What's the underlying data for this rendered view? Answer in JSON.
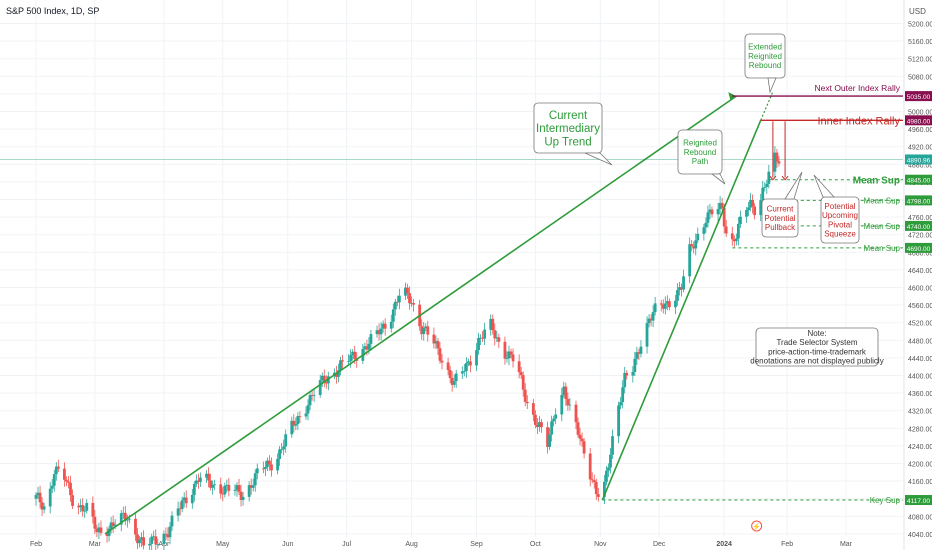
{
  "header": {
    "symbol_title": "S&P 500 Index, 1D, SP"
  },
  "colors": {
    "up": "#26a69a",
    "down": "#ef5350",
    "green": "#2e9c3a",
    "red": "#c62828",
    "maroon": "#880e4f",
    "grid": "#f0f3f6",
    "axis_text": "#555555",
    "price_line": "#a8d8cc"
  },
  "chart_data": {
    "type": "candlestick",
    "title": "S&P 500 Index, 1D, SP",
    "currency": "USD",
    "y_range": [
      4040,
      5240
    ],
    "y_ticks": [
      5200,
      5160,
      5120,
      5080,
      5040,
      5000,
      4960,
      4920,
      4880,
      4840,
      4800,
      4760,
      4720,
      4680,
      4640,
      4600,
      4560,
      4520,
      4480,
      4440,
      4400,
      4360,
      4320,
      4280,
      4240,
      4200,
      4160,
      4120,
      4080,
      4040
    ],
    "y_tick_labels": [
      "5200.00",
      "5160.00",
      "5120.00",
      "5080.00",
      "5040.00",
      "5000.00",
      "4960.00",
      "4920.00",
      "4880.00",
      "4840.00",
      "4800.00",
      "4760.00",
      "4720.00",
      "4680.00",
      "4640.00",
      "4600.00",
      "4560.00",
      "4520.00",
      "4480.00",
      "4440.00",
      "4400.00",
      "4360.00",
      "4320.00",
      "4280.00",
      "4240.00",
      "4200.00",
      "4160.00",
      "4120.00",
      "4080.00",
      "4040.00"
    ],
    "x_labels": [
      "Feb",
      "Mar",
      "Apr",
      "May",
      "Jun",
      "Jul",
      "Aug",
      "Sep",
      "Oct",
      "Nov",
      "Dec",
      "2024",
      "Feb",
      "Mar"
    ],
    "x_label_days": [
      0,
      29,
      63,
      92,
      124,
      153,
      185,
      217,
      246,
      278,
      307,
      339,
      370,
      399
    ],
    "close_series_anchors": [
      [
        0,
        4120
      ],
      [
        5,
        4100
      ],
      [
        9,
        4185
      ],
      [
        14,
        4165
      ],
      [
        19,
        4110
      ],
      [
        25,
        4095
      ],
      [
        30,
        4045
      ],
      [
        38,
        4060
      ],
      [
        45,
        4080
      ],
      [
        53,
        4010
      ],
      [
        60,
        4030
      ],
      [
        65,
        4045
      ],
      [
        72,
        4110
      ],
      [
        80,
        4165
      ],
      [
        88,
        4150
      ],
      [
        95,
        4140
      ],
      [
        102,
        4130
      ],
      [
        110,
        4180
      ],
      [
        118,
        4210
      ],
      [
        126,
        4280
      ],
      [
        134,
        4340
      ],
      [
        142,
        4390
      ],
      [
        150,
        4420
      ],
      [
        158,
        4450
      ],
      [
        166,
        4480
      ],
      [
        174,
        4530
      ],
      [
        180,
        4590
      ],
      [
        185,
        4570
      ],
      [
        190,
        4510
      ],
      [
        195,
        4480
      ],
      [
        200,
        4440
      ],
      [
        206,
        4380
      ],
      [
        212,
        4420
      ],
      [
        218,
        4480
      ],
      [
        224,
        4510
      ],
      [
        230,
        4460
      ],
      [
        236,
        4430
      ],
      [
        242,
        4340
      ],
      [
        248,
        4280
      ],
      [
        252,
        4240
      ],
      [
        256,
        4330
      ],
      [
        260,
        4370
      ],
      [
        264,
        4300
      ],
      [
        268,
        4260
      ],
      [
        272,
        4200
      ],
      [
        276,
        4130
      ],
      [
        279,
        4115
      ],
      [
        282,
        4200
      ],
      [
        286,
        4320
      ],
      [
        290,
        4390
      ],
      [
        294,
        4410
      ],
      [
        298,
        4480
      ],
      [
        302,
        4530
      ],
      [
        306,
        4550
      ],
      [
        310,
        4560
      ],
      [
        314,
        4580
      ],
      [
        318,
        4600
      ],
      [
        322,
        4680
      ],
      [
        326,
        4720
      ],
      [
        330,
        4760
      ],
      [
        334,
        4770
      ],
      [
        338,
        4780
      ],
      [
        340,
        4730
      ],
      [
        342,
        4700
      ],
      [
        345,
        4720
      ],
      [
        349,
        4770
      ],
      [
        352,
        4790
      ],
      [
        355,
        4780
      ],
      [
        358,
        4820
      ],
      [
        361,
        4850
      ],
      [
        364,
        4890
      ],
      [
        366,
        4890
      ]
    ],
    "price_labels": [
      {
        "label": "5035.00",
        "value": 5035,
        "kind": "maroon"
      },
      {
        "label": "4980.00",
        "value": 4980,
        "kind": "maroon"
      },
      {
        "label": "4890.96",
        "value": 4890.96,
        "kind": "last"
      },
      {
        "label": "4845.00",
        "value": 4845,
        "kind": "green"
      },
      {
        "label": "4798.00",
        "value": 4798,
        "kind": "green"
      },
      {
        "label": "4740.00",
        "value": 4740,
        "kind": "green"
      },
      {
        "label": "4690.00",
        "value": 4690,
        "kind": "green"
      },
      {
        "label": "4117.00",
        "value": 4117,
        "kind": "green"
      }
    ],
    "trendlines": [
      {
        "name": "intermediary-uptrend",
        "from": [
          34,
          4040
        ],
        "to": [
          345,
          5035
        ],
        "color": "green"
      },
      {
        "name": "reignited-rebound-path",
        "from": [
          279,
          4117
        ],
        "to": [
          357,
          4980
        ],
        "color": "green"
      },
      {
        "name": "extended-reignited-rebound",
        "from": [
          357,
          4980
        ],
        "to": [
          363,
          5045
        ],
        "color": "green",
        "dashed": true
      }
    ],
    "levels": [
      {
        "name": "next-outer-index-rally",
        "value": 5035,
        "from_day": 343,
        "label": "Next Outer Index Rally",
        "color": "maroon"
      },
      {
        "name": "inner-index-rally",
        "value": 4980,
        "from_day": 357,
        "label": "Inner Index Rally",
        "color": "red"
      },
      {
        "name": "mean-sup-1",
        "value": 4845,
        "from_day": 361,
        "label": "Mean Sup",
        "color": "green"
      },
      {
        "name": "mean-sup-2",
        "value": 4798,
        "from_day": 359,
        "label": "Mean Sup",
        "color": "green"
      },
      {
        "name": "mean-sup-3",
        "value": 4740,
        "from_day": 359,
        "label": "Mean Sup",
        "color": "green"
      },
      {
        "name": "mean-sup-4",
        "value": 4690,
        "from_day": 343,
        "label": "Mean Sup",
        "color": "green"
      },
      {
        "name": "key-sup",
        "value": 4117,
        "from_day": 279,
        "label": "Key Sup",
        "color": "green"
      }
    ],
    "callouts": {
      "current_trend": "Current\nIntermediary\nUp Trend",
      "reignited": "Reignited\nRebound\nPath",
      "extended": "Extended\nReignited\nRebound",
      "pullback": "Current\nPotential\nPullback",
      "squeeze": "Potential\nUpcoming\nPivotal\nSqueeze",
      "note": "Note:\nTrade Selector System\nprice-action-time-trademark\ndenotations are not displayed publicly"
    }
  }
}
